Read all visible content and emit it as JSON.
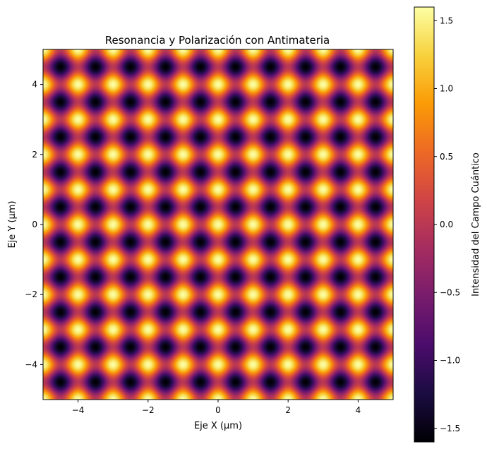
{
  "chart_data": {
    "type": "heatmap",
    "title": "Resonancia y Polarización con Antimateria",
    "xlabel": "Eje X (μm)",
    "ylabel": "Eje Y (μm)",
    "xlim": [
      -5,
      5
    ],
    "ylim": [
      -5,
      5
    ],
    "x_ticks": [
      -4,
      -2,
      0,
      2,
      4
    ],
    "x_tick_labels": [
      "−4",
      "−2",
      "0",
      "2",
      "4"
    ],
    "y_ticks": [
      -4,
      -2,
      0,
      2,
      4
    ],
    "y_tick_labels": [
      "−4",
      "−2",
      "0",
      "2",
      "4"
    ],
    "colormap": "inferno",
    "colormap_stops": [
      "#000004",
      "#1b0c41",
      "#4a0c6b",
      "#781c6d",
      "#a52c60",
      "#cf4446",
      "#ed6925",
      "#fb9b06",
      "#f7d13d",
      "#fcffa4"
    ],
    "field": {
      "description_formula": "sin(k·x)·sin(k·y) + cos(k·x)·cos(k·y) pattern sampled on grid",
      "peaks_per_axis": 20,
      "value_range": [
        -1.6,
        1.6
      ]
    },
    "colorbar": {
      "label": "Intensidad del Campo Cuántico",
      "range": [
        -1.6,
        1.6
      ],
      "ticks": [
        1.5,
        1.0,
        0.5,
        0.0,
        -0.5,
        -1.0,
        -1.5
      ],
      "tick_labels": [
        "1.5",
        "1.0",
        "0.5",
        "0.0",
        "−0.5",
        "−1.0",
        "−1.5"
      ]
    },
    "grid": false,
    "legend": "none"
  }
}
